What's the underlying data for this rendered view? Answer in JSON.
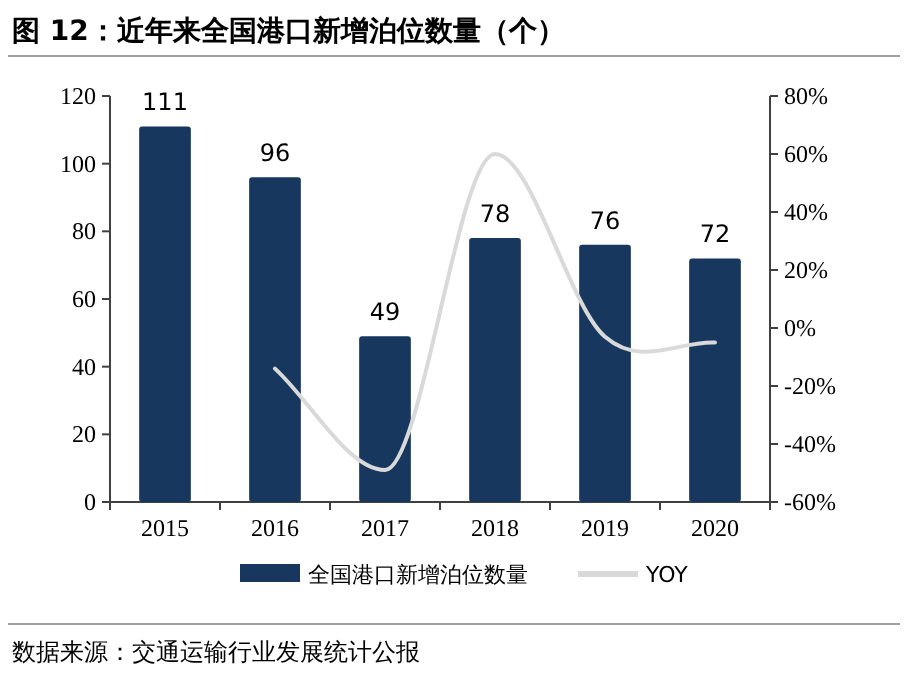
{
  "chart_data": {
    "type": "bar",
    "title": "图 12：近年来全国港口新增泊位数量（个）",
    "categories": [
      "2015",
      "2016",
      "2017",
      "2018",
      "2019",
      "2020"
    ],
    "series": [
      {
        "name": "全国港口新增泊位数量",
        "color": "#17375e",
        "values": [
          111,
          96,
          49,
          78,
          76,
          72
        ],
        "value_labels": [
          "111",
          "96",
          "49",
          "78",
          "76",
          "72"
        ]
      },
      {
        "name": "YOY",
        "type": "line",
        "axis": "y2",
        "color": "#d9d9d9",
        "values": [
          null,
          -14,
          -49,
          60,
          -3,
          -5
        ]
      }
    ],
    "ylim": [
      0,
      120
    ],
    "yticks": [
      0,
      20,
      40,
      60,
      80,
      100,
      120
    ],
    "y2lim": [
      -60,
      80
    ],
    "y2ticks": [
      {
        "value": -60,
        "label": "-60%"
      },
      {
        "value": -40,
        "label": "-40%"
      },
      {
        "value": -20,
        "label": "-20%"
      },
      {
        "value": 0,
        "label": "0%"
      },
      {
        "value": 20,
        "label": "20%"
      },
      {
        "value": 40,
        "label": "40%"
      },
      {
        "value": 60,
        "label": "60%"
      },
      {
        "value": 80,
        "label": "80%"
      }
    ],
    "legend": "bottom",
    "annotations": [
      "数据来源：交通运输行业发展统计公报"
    ]
  }
}
